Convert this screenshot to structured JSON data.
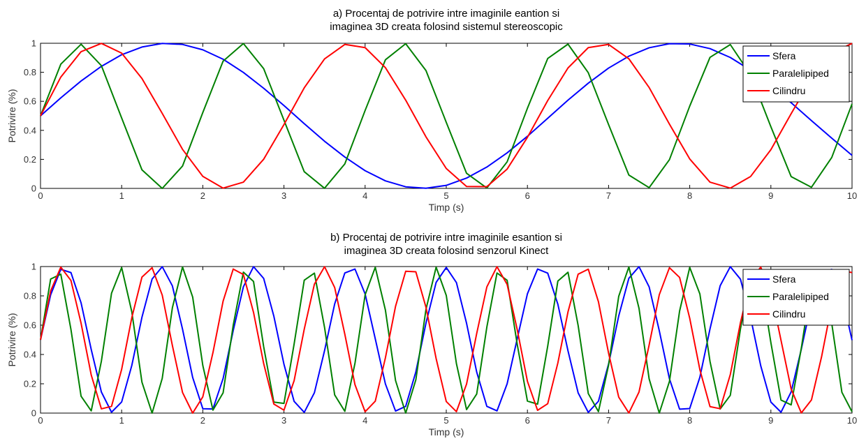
{
  "colors": {
    "Sfera": "#0000ff",
    "Paralelipiped": "#008000",
    "Cilindru": "#ff0000"
  },
  "chart_data": [
    {
      "type": "line",
      "title_lines": [
        "a) Procentaj de potrivire intre imaginile eantion si",
        "imaginea 3D creata folosind sistemul stereoscopic"
      ],
      "xlabel": "Timp (s)",
      "ylabel": "Potrivire (%)",
      "xlim": [
        0,
        10
      ],
      "ylim": [
        0,
        1
      ],
      "xticks": [
        "0",
        "1",
        "2",
        "3",
        "4",
        "5",
        "6",
        "7",
        "8",
        "9",
        "10"
      ],
      "yticks": [
        "0",
        "0.2",
        "0.4",
        "0.6",
        "0.8",
        "1"
      ],
      "legend": "top-right",
      "x": [
        0,
        0.25,
        0.5,
        0.75,
        1,
        1.25,
        1.5,
        1.75,
        2,
        2.25,
        2.5,
        2.75,
        3,
        3.25,
        3.5,
        3.75,
        4,
        4.25,
        4.5,
        4.75,
        5,
        5.25,
        5.5,
        5.75,
        6,
        6.25,
        6.5,
        6.75,
        7,
        7.25,
        7.5,
        7.75,
        8,
        8.25,
        8.5,
        8.75,
        9,
        9.25,
        9.5,
        9.75,
        10
      ],
      "series": [
        {
          "name": "Sfera",
          "values": [
            0.5,
            0.624,
            0.74,
            0.841,
            0.921,
            0.974,
            0.999,
            0.992,
            0.955,
            0.89,
            0.799,
            0.69,
            0.571,
            0.446,
            0.325,
            0.216,
            0.122,
            0.052,
            0.011,
            0.001,
            0.021,
            0.071,
            0.147,
            0.245,
            0.359,
            0.483,
            0.608,
            0.725,
            0.829,
            0.911,
            0.969,
            0.997,
            0.995,
            0.963,
            0.902,
            0.815,
            0.706,
            0.59,
            0.467,
            0.346,
            0.228
          ]
        },
        {
          "name": "Paralelipiped",
          "values": [
            0.5,
            0.856,
            0.993,
            0.846,
            0.485,
            0.128,
            0.0,
            0.154,
            0.523,
            0.877,
            0.998,
            0.825,
            0.47,
            0.115,
            0.001,
            0.169,
            0.537,
            0.886,
            0.997,
            0.812,
            0.455,
            0.104,
            0.003,
            0.183,
            0.552,
            0.895,
            0.994,
            0.797,
            0.44,
            0.092,
            0.005,
            0.198,
            0.567,
            0.903,
            0.991,
            0.783,
            0.425,
            0.081,
            0.008,
            0.213,
            0.582
          ]
        },
        {
          "name": "Cilindru",
          "values": [
            0.5,
            0.767,
            0.942,
            0.999,
            0.932,
            0.757,
            0.517,
            0.269,
            0.083,
            0.002,
            0.043,
            0.201,
            0.44,
            0.693,
            0.892,
            0.992,
            0.97,
            0.832,
            0.608,
            0.355,
            0.137,
            0.013,
            0.012,
            0.133,
            0.352,
            0.605,
            0.83,
            0.97,
            0.992,
            0.893,
            0.695,
            0.443,
            0.203,
            0.043,
            0.002,
            0.082,
            0.267,
            0.515,
            0.756,
            0.932,
            0.999
          ]
        }
      ]
    },
    {
      "type": "line",
      "title_lines": [
        "b) Procentaj de potrivire intre imaginile esantion si",
        "imaginea 3D creata folosind senzorul Kinect"
      ],
      "xlabel": "Timp (s)",
      "ylabel": "Potrivire (%)",
      "xlim": [
        0,
        10
      ],
      "ylim": [
        0,
        1
      ],
      "xticks": [
        "0",
        "1",
        "2",
        "3",
        "4",
        "5",
        "6",
        "7",
        "8",
        "9",
        "10"
      ],
      "yticks": [
        "0",
        "0.2",
        "0.4",
        "0.6",
        "0.8",
        "1"
      ],
      "legend": "top-right",
      "x": [
        0,
        0.125,
        0.25,
        0.375,
        0.5,
        0.625,
        0.75,
        0.875,
        1,
        1.125,
        1.25,
        1.375,
        1.5,
        1.625,
        1.75,
        1.875,
        2,
        2.125,
        2.25,
        2.375,
        2.5,
        2.625,
        2.75,
        2.875,
        3,
        3.125,
        3.25,
        3.375,
        3.5,
        3.625,
        3.75,
        3.875,
        4,
        4.125,
        4.25,
        4.375,
        4.5,
        4.625,
        4.75,
        4.875,
        5,
        5.125,
        5.25,
        5.375,
        5.5,
        5.625,
        5.75,
        5.875,
        6,
        6.125,
        6.25,
        6.375,
        6.5,
        6.625,
        6.75,
        6.875,
        7,
        7.125,
        7.25,
        7.375,
        7.5,
        7.625,
        7.75,
        7.875,
        8,
        8.125,
        8.25,
        8.375,
        8.5,
        8.625,
        8.75,
        8.875,
        9,
        9.125,
        9.25,
        9.375,
        9.5,
        9.625,
        9.75,
        9.875,
        10
      ],
      "series": [
        {
          "name": "Sfera",
          "values": [
            0.5,
            0.807,
            0.981,
            0.959,
            0.752,
            0.434,
            0.144,
            0.006,
            0.076,
            0.325,
            0.654,
            0.915,
            0.999,
            0.868,
            0.573,
            0.243,
            0.03,
            0.028,
            0.236,
            0.564,
            0.862,
            0.999,
            0.919,
            0.662,
            0.333,
            0.08,
            0.005,
            0.139,
            0.426,
            0.745,
            0.956,
            0.983,
            0.813,
            0.507,
            0.199,
            0.014,
            0.046,
            0.281,
            0.614,
            0.892,
            0.994,
            0.891,
            0.613,
            0.28,
            0.046,
            0.015,
            0.2,
            0.509,
            0.814,
            0.983,
            0.955,
            0.743,
            0.425,
            0.138,
            0.005,
            0.081,
            0.335,
            0.663,
            0.92,
            0.999,
            0.861,
            0.562,
            0.234,
            0.027,
            0.031,
            0.245,
            0.575,
            0.869,
            0.999,
            0.914,
            0.652,
            0.323,
            0.075,
            0.006,
            0.145,
            0.436,
            0.754,
            0.96,
            0.981,
            0.805,
            0.498
          ]
        },
        {
          "name": "Paralelipiped",
          "values": [
            0.5,
            0.915,
            0.948,
            0.571,
            0.115,
            0.015,
            0.354,
            0.818,
            0.993,
            0.691,
            0.211,
            0.0,
            0.237,
            0.719,
            0.997,
            0.792,
            0.325,
            0.02,
            0.138,
            0.6,
            0.962,
            0.898,
            0.453,
            0.075,
            0.066,
            0.471,
            0.907,
            0.955,
            0.585,
            0.124,
            0.012,
            0.34,
            0.807,
            0.995,
            0.703,
            0.222,
            0.0,
            0.227,
            0.708,
            0.996,
            0.803,
            0.338,
            0.024,
            0.13,
            0.587,
            0.956,
            0.906,
            0.467,
            0.082,
            0.061,
            0.457,
            0.901,
            0.961,
            0.598,
            0.133,
            0.01,
            0.327,
            0.797,
            0.997,
            0.715,
            0.233,
            0.0,
            0.216,
            0.696,
            0.994,
            0.813,
            0.352,
            0.028,
            0.121,
            0.574,
            0.95,
            0.913,
            0.481,
            0.089,
            0.056,
            0.443,
            0.894,
            0.966,
            0.612,
            0.142,
            0.009
          ]
        },
        {
          "name": "Cilindru",
          "values": [
            0.5,
            0.833,
            0.996,
            0.905,
            0.613,
            0.26,
            0.029,
            0.046,
            0.299,
            0.651,
            0.928,
            0.992,
            0.805,
            0.461,
            0.141,
            0.0,
            0.111,
            0.413,
            0.764,
            0.983,
            0.946,
            0.687,
            0.338,
            0.062,
            0.02,
            0.221,
            0.573,
            0.88,
            0.999,
            0.857,
            0.538,
            0.194,
            0.009,
            0.081,
            0.377,
            0.729,
            0.968,
            0.964,
            0.722,
            0.372,
            0.079,
            0.01,
            0.198,
            0.543,
            0.861,
            0.999,
            0.878,
            0.568,
            0.217,
            0.019,
            0.064,
            0.342,
            0.691,
            0.948,
            0.982,
            0.76,
            0.409,
            0.109,
            0.001,
            0.144,
            0.465,
            0.808,
            0.992,
            0.926,
            0.647,
            0.296,
            0.044,
            0.03,
            0.263,
            0.617,
            0.907,
            0.996,
            0.83,
            0.496,
            0.164,
            0.001,
            0.09,
            0.385,
            0.739,
            0.973,
            0.959
          ]
        }
      ]
    }
  ]
}
